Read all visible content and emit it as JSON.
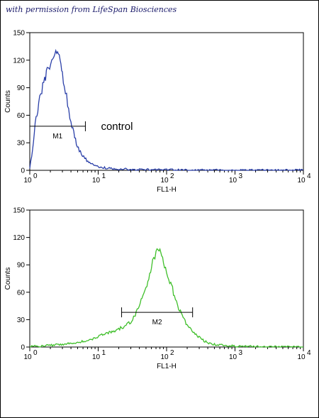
{
  "credit": "with permission from LifeSpan Biosciences",
  "chart_data": [
    {
      "type": "line",
      "xscale": "log",
      "xlim": [
        1,
        10000
      ],
      "ylim": [
        0,
        150
      ],
      "xticks": [
        "10",
        "10",
        "10",
        "10",
        "10"
      ],
      "xtick_exponents": [
        "0",
        "1",
        "2",
        "3",
        "4"
      ],
      "xtick_values": [
        1,
        10,
        100,
        1000,
        10000
      ],
      "yticks": [
        "0",
        "30",
        "60",
        "90",
        "120",
        "150"
      ],
      "ytick_values": [
        0,
        30,
        60,
        90,
        120,
        150
      ],
      "xlabel": "FL1-H",
      "ylabel": "Counts",
      "color": "#2a3fa8",
      "series": [
        {
          "x": [
            1.0,
            1.1,
            1.2,
            1.35,
            1.5,
            1.65,
            1.8,
            1.95,
            2.1,
            2.25,
            2.4,
            2.55,
            2.7,
            2.85,
            3.0,
            3.2,
            3.45,
            3.7,
            4.0,
            4.4,
            4.8,
            5.3,
            5.9,
            6.6,
            7.5,
            8.5,
            10,
            12,
            15,
            20,
            30,
            50,
            100,
            300,
            1000,
            3000,
            10000
          ],
          "y": [
            3,
            22,
            50,
            72,
            88,
            98,
            108,
            114,
            120,
            126,
            131,
            127,
            122,
            115,
            105,
            93,
            80,
            66,
            52,
            40,
            30,
            22,
            16,
            12,
            8,
            6,
            4,
            3,
            2,
            1.5,
            1,
            0.8,
            0.5,
            0.3,
            0.2,
            0.2,
            0.2
          ]
        }
      ],
      "marker": {
        "label": "M1",
        "x_start": 1,
        "x_end": 6.5,
        "y": 48
      },
      "annotation": "control"
    },
    {
      "type": "line",
      "xscale": "log",
      "xlim": [
        1,
        10000
      ],
      "ylim": [
        0,
        150
      ],
      "xticks": [
        "10",
        "10",
        "10",
        "10",
        "10"
      ],
      "xtick_exponents": [
        "0",
        "1",
        "2",
        "3",
        "4"
      ],
      "xtick_values": [
        1,
        10,
        100,
        1000,
        10000
      ],
      "yticks": [
        "0",
        "30",
        "60",
        "90",
        "120",
        "150"
      ],
      "ytick_values": [
        0,
        30,
        60,
        90,
        120,
        150
      ],
      "xlabel": "FL1-H",
      "ylabel": "Counts",
      "color": "#3fbf2a",
      "series": [
        {
          "x": [
            1,
            1.5,
            2,
            3,
            4,
            5,
            6,
            8,
            10,
            12,
            15,
            18,
            20,
            24,
            28,
            32,
            36,
            40,
            45,
            50,
            55,
            60,
            65,
            70,
            75,
            80,
            90,
            100,
            115,
            130,
            150,
            180,
            220,
            270,
            330,
            400,
            500,
            700,
            1000,
            2000,
            5000,
            10000
          ],
          "y": [
            1,
            1,
            2,
            3,
            4,
            5,
            6,
            8,
            11,
            14,
            16,
            17,
            20,
            22,
            26,
            30,
            38,
            46,
            55,
            66,
            78,
            88,
            97,
            104,
            110,
            105,
            95,
            84,
            70,
            56,
            42,
            30,
            20,
            13,
            8,
            5,
            3,
            2,
            1,
            0.5,
            0.3,
            0.2
          ]
        }
      ],
      "marker": {
        "label": "M2",
        "x_start": 22,
        "x_end": 240,
        "y": 38
      }
    }
  ]
}
